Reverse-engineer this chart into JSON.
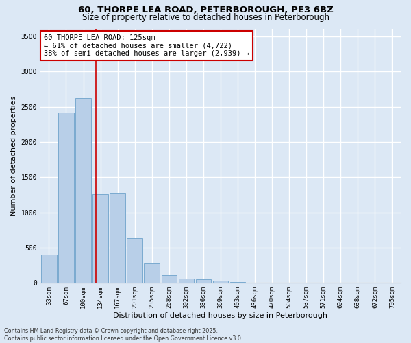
{
  "title_line1": "60, THORPE LEA ROAD, PETERBOROUGH, PE3 6BZ",
  "title_line2": "Size of property relative to detached houses in Peterborough",
  "xlabel": "Distribution of detached houses by size in Peterborough",
  "ylabel": "Number of detached properties",
  "categories": [
    "33sqm",
    "67sqm",
    "100sqm",
    "134sqm",
    "167sqm",
    "201sqm",
    "235sqm",
    "268sqm",
    "302sqm",
    "336sqm",
    "369sqm",
    "403sqm",
    "436sqm",
    "470sqm",
    "504sqm",
    "537sqm",
    "571sqm",
    "604sqm",
    "638sqm",
    "672sqm",
    "705sqm"
  ],
  "values": [
    400,
    2420,
    2620,
    1260,
    1270,
    640,
    280,
    110,
    60,
    50,
    30,
    10,
    0,
    0,
    0,
    0,
    0,
    0,
    0,
    0,
    0
  ],
  "bar_color": "#b8cfe8",
  "bar_edge_color": "#7aaad0",
  "vline_color": "#cc0000",
  "vline_pos": 2.75,
  "annotation_text": "60 THORPE LEA ROAD: 125sqm\n← 61% of detached houses are smaller (4,722)\n38% of semi-detached houses are larger (2,939) →",
  "annotation_box_color": "#cc0000",
  "ylim": [
    0,
    3600
  ],
  "yticks": [
    0,
    500,
    1000,
    1500,
    2000,
    2500,
    3000,
    3500
  ],
  "background_color": "#dce8f5",
  "grid_color": "#ffffff",
  "footer_line1": "Contains HM Land Registry data © Crown copyright and database right 2025.",
  "footer_line2": "Contains public sector information licensed under the Open Government Licence v3.0.",
  "title_fontsize": 9.5,
  "subtitle_fontsize": 8.5,
  "tick_fontsize": 6.5,
  "label_fontsize": 8,
  "annotation_fontsize": 7.5,
  "footer_fontsize": 5.8
}
